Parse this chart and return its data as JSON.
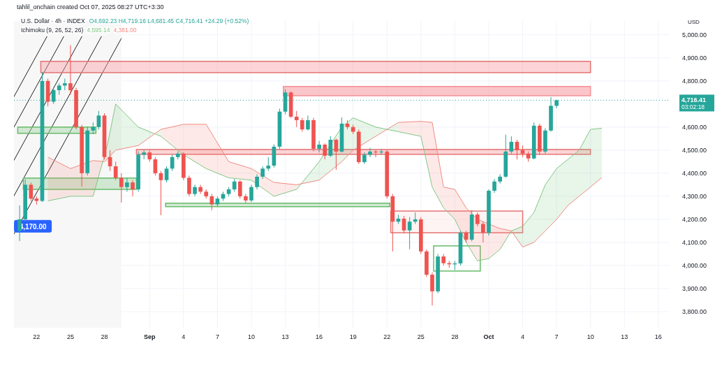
{
  "chart_data": {
    "type": "candlestick",
    "title": "U.S. Dollar · 4h · INDEX",
    "ylabel": "USD",
    "x": [
      "2025-08-20T12:00",
      "2025-08-21T00:00",
      "2025-08-21T12:00",
      "2025-08-22T00:00",
      "2025-08-22T12:00",
      "2025-08-23T00:00",
      "2025-08-23T12:00",
      "2025-08-24T00:00",
      "2025-08-24T12:00",
      "2025-08-25T00:00",
      "2025-08-25T12:00",
      "2025-08-26T00:00",
      "2025-08-26T12:00",
      "2025-08-27T00:00",
      "2025-08-27T12:00",
      "2025-08-28T00:00",
      "2025-08-28T12:00",
      "2025-08-29T00:00",
      "2025-08-29T12:00",
      "2025-08-30T00:00",
      "2025-08-30T12:00",
      "2025-08-31T00:00",
      "2025-08-31T12:00",
      "2025-09-01T00:00",
      "2025-09-01T12:00",
      "2025-09-02T00:00",
      "2025-09-02T12:00",
      "2025-09-03T00:00",
      "2025-09-03T12:00",
      "2025-09-04T00:00",
      "2025-09-04T12:00",
      "2025-09-05T00:00",
      "2025-09-05T12:00",
      "2025-09-06T00:00",
      "2025-09-06T12:00",
      "2025-09-07T00:00",
      "2025-09-07T12:00",
      "2025-09-08T00:00",
      "2025-09-08T12:00",
      "2025-09-09T00:00",
      "2025-09-09T12:00",
      "2025-09-10T00:00",
      "2025-09-10T12:00",
      "2025-09-11T00:00",
      "2025-09-11T12:00",
      "2025-09-12T00:00",
      "2025-09-12T12:00",
      "2025-09-13T00:00",
      "2025-09-13T12:00",
      "2025-09-14T00:00",
      "2025-09-14T12:00",
      "2025-09-15T00:00",
      "2025-09-15T12:00",
      "2025-09-16T00:00",
      "2025-09-16T12:00",
      "2025-09-17T00:00",
      "2025-09-17T12:00",
      "2025-09-18T00:00",
      "2025-09-18T12:00",
      "2025-09-19T00:00",
      "2025-09-19T12:00",
      "2025-09-20T00:00",
      "2025-09-20T12:00",
      "2025-09-21T00:00",
      "2025-09-21T12:00",
      "2025-09-22T00:00",
      "2025-09-22T12:00",
      "2025-09-23T00:00",
      "2025-09-23T12:00",
      "2025-09-24T00:00",
      "2025-09-24T12:00",
      "2025-09-25T00:00",
      "2025-09-25T12:00",
      "2025-09-26T00:00",
      "2025-09-26T12:00",
      "2025-09-27T00:00",
      "2025-09-27T12:00",
      "2025-09-28T00:00",
      "2025-09-28T12:00",
      "2025-09-29T00:00",
      "2025-09-29T12:00",
      "2025-09-30T00:00",
      "2025-09-30T12:00",
      "2025-10-01T00:00",
      "2025-10-01T12:00",
      "2025-10-02T00:00",
      "2025-10-02T12:00",
      "2025-10-03T00:00",
      "2025-10-03T12:00",
      "2025-10-04T00:00",
      "2025-10-04T12:00",
      "2025-10-05T00:00",
      "2025-10-05T12:00",
      "2025-10-06T00:00",
      "2025-10-06T12:00",
      "2025-10-07T00:00"
    ],
    "ohlc": [
      [
        4150,
        4260,
        4106,
        4200
      ],
      [
        4200,
        4373,
        4190,
        4350
      ],
      [
        4350,
        4360,
        4280,
        4290
      ],
      [
        4290,
        4300,
        4264,
        4280
      ],
      [
        4280,
        4839,
        4275,
        4800
      ],
      [
        4800,
        4810,
        4690,
        4710
      ],
      [
        4710,
        4770,
        4700,
        4760
      ],
      [
        4760,
        4790,
        4740,
        4780
      ],
      [
        4780,
        4810,
        4760,
        4790
      ],
      [
        4790,
        4955,
        4740,
        4760
      ],
      [
        4760,
        4770,
        4590,
        4600
      ],
      [
        4600,
        4610,
        4342,
        4400
      ],
      [
        4400,
        4600,
        4390,
        4585
      ],
      [
        4585,
        4620,
        4570,
        4600
      ],
      [
        4600,
        4670,
        4590,
        4650
      ],
      [
        4650,
        4660,
        4460,
        4470
      ],
      [
        4470,
        4500,
        4410,
        4430
      ],
      [
        4430,
        4450,
        4370,
        4380
      ],
      [
        4380,
        4400,
        4273,
        4340
      ],
      [
        4340,
        4380,
        4320,
        4360
      ],
      [
        4360,
        4370,
        4300,
        4330
      ],
      [
        4330,
        4495,
        4320,
        4480
      ],
      [
        4480,
        4500,
        4460,
        4490
      ],
      [
        4490,
        4500,
        4450,
        4460
      ],
      [
        4460,
        4470,
        4390,
        4400
      ],
      [
        4400,
        4410,
        4218,
        4370
      ],
      [
        4370,
        4430,
        4360,
        4420
      ],
      [
        4420,
        4480,
        4410,
        4470
      ],
      [
        4470,
        4495,
        4460,
        4485
      ],
      [
        4485,
        4490,
        4370,
        4380
      ],
      [
        4380,
        4390,
        4300,
        4310
      ],
      [
        4310,
        4350,
        4300,
        4340
      ],
      [
        4340,
        4350,
        4310,
        4320
      ],
      [
        4320,
        4330,
        4290,
        4300
      ],
      [
        4300,
        4310,
        4240,
        4265
      ],
      [
        4265,
        4300,
        4255,
        4290
      ],
      [
        4290,
        4320,
        4280,
        4310
      ],
      [
        4310,
        4340,
        4300,
        4330
      ],
      [
        4330,
        4375,
        4320,
        4364
      ],
      [
        4364,
        4370,
        4290,
        4300
      ],
      [
        4300,
        4310,
        4270,
        4282
      ],
      [
        4282,
        4350,
        4275,
        4340
      ],
      [
        4340,
        4395,
        4330,
        4385
      ],
      [
        4385,
        4430,
        4375,
        4420
      ],
      [
        4420,
        4470,
        4410,
        4433
      ],
      [
        4433,
        4525,
        4425,
        4515
      ],
      [
        4515,
        4680,
        4505,
        4667
      ],
      [
        4667,
        4764,
        4655,
        4750
      ],
      [
        4750,
        4755,
        4640,
        4645
      ],
      [
        4645,
        4670,
        4600,
        4630
      ],
      [
        4630,
        4640,
        4580,
        4590
      ],
      [
        4590,
        4650,
        4585,
        4630
      ],
      [
        4630,
        4640,
        4495,
        4506
      ],
      [
        4506,
        4540,
        4490,
        4524
      ],
      [
        4524,
        4530,
        4460,
        4476
      ],
      [
        4476,
        4560,
        4470,
        4545
      ],
      [
        4545,
        4550,
        4415,
        4494
      ],
      [
        4494,
        4642,
        4490,
        4615
      ],
      [
        4615,
        4630,
        4590,
        4600
      ],
      [
        4600,
        4610,
        4570,
        4580
      ],
      [
        4580,
        4590,
        4440,
        4448
      ],
      [
        4448,
        4490,
        4440,
        4480
      ],
      [
        4480,
        4510,
        4470,
        4494
      ],
      [
        4494,
        4500,
        4470,
        4490
      ],
      [
        4490,
        4505,
        4480,
        4494
      ],
      [
        4494,
        4500,
        4290,
        4300
      ],
      [
        4300,
        4310,
        4061,
        4190
      ],
      [
        4190,
        4220,
        4180,
        4203
      ],
      [
        4203,
        4215,
        4140,
        4152
      ],
      [
        4152,
        4210,
        4070,
        4190
      ],
      [
        4190,
        4230,
        4180,
        4200
      ],
      [
        4200,
        4210,
        4050,
        4061
      ],
      [
        4061,
        4070,
        3950,
        3960
      ],
      [
        3960,
        3970,
        3827,
        3888
      ],
      [
        3888,
        4050,
        3880,
        4039
      ],
      [
        4039,
        4050,
        4000,
        4010
      ],
      [
        4010,
        4020,
        3990,
        4005
      ],
      [
        4005,
        4020,
        3980,
        4009
      ],
      [
        4009,
        4150,
        4000,
        4142
      ],
      [
        4142,
        4150,
        4100,
        4112
      ],
      [
        4112,
        4240,
        4105,
        4221
      ],
      [
        4221,
        4230,
        4170,
        4180
      ],
      [
        4180,
        4190,
        4100,
        4142
      ],
      [
        4142,
        4330,
        4130,
        4324
      ],
      [
        4324,
        4375,
        4315,
        4364
      ],
      [
        4364,
        4395,
        4355,
        4385
      ],
      [
        4385,
        4567,
        4380,
        4494
      ],
      [
        4494,
        4560,
        4485,
        4536
      ],
      [
        4536,
        4545,
        4460,
        4500
      ],
      [
        4500,
        4520,
        4470,
        4485
      ],
      [
        4485,
        4495,
        4450,
        4464
      ],
      [
        4464,
        4620,
        4460,
        4606
      ],
      [
        4606,
        4615,
        4480,
        4494
      ],
      [
        4494,
        4595,
        4485,
        4585
      ],
      [
        4585,
        4730,
        4580,
        4692.23
      ],
      [
        4692.23,
        4719.16,
        4681.45,
        4716.41
      ]
    ],
    "series": [
      {
        "type": "line",
        "color": "#81c784",
        "x": [
          "2025-08-23",
          "2025-08-25",
          "2025-08-27",
          "2025-08-28T06:00",
          "2025-08-29",
          "2025-08-31",
          "2025-09-02",
          "2025-09-04",
          "2025-09-06",
          "2025-09-08",
          "2025-09-10",
          "2025-09-12",
          "2025-09-14",
          "2025-09-16",
          "2025-09-18",
          "2025-09-19",
          "2025-09-21",
          "2025-09-23",
          "2025-09-25",
          "2025-09-26",
          "2025-09-27",
          "2025-09-28",
          "2025-09-29",
          "2025-09-30",
          "2025-10-01",
          "2025-10-02",
          "2025-10-03",
          "2025-10-04",
          "2025-10-05",
          "2025-10-06",
          "2025-10-07",
          "2025-10-08",
          "2025-10-09",
          "2025-10-10",
          "2025-10-11"
        ],
        "values": [
          4280,
          4300,
          4300,
          4520,
          4700,
          4600,
          4560,
          4480,
          4420,
          4380,
          4370,
          4300,
          4330,
          4450,
          4600,
          4640,
          4600,
          4580,
          4560,
          4340,
          4250,
          4200,
          4100,
          4020,
          4030,
          4070,
          4150,
          4170,
          4230,
          4350,
          4420,
          4460,
          4500,
          4590,
          4595
        ]
      },
      {
        "type": "line",
        "color": "#f28b82",
        "x": [
          "2025-08-23",
          "2025-08-25",
          "2025-08-27",
          "2025-08-28",
          "2025-08-29",
          "2025-08-31",
          "2025-09-02",
          "2025-09-04",
          "2025-09-06",
          "2025-09-08",
          "2025-09-10",
          "2025-09-12",
          "2025-09-14",
          "2025-09-16",
          "2025-09-18",
          "2025-09-19",
          "2025-09-21",
          "2025-09-23",
          "2025-09-25",
          "2025-09-26",
          "2025-09-27",
          "2025-09-28",
          "2025-09-29",
          "2025-09-30",
          "2025-10-01",
          "2025-10-02",
          "2025-10-03",
          "2025-10-04",
          "2025-10-05",
          "2025-10-06",
          "2025-10-07",
          "2025-10-08",
          "2025-10-09",
          "2025-10-10",
          "2025-10-11"
        ],
        "values": [
          4470,
          4420,
          4455,
          4450,
          4500,
          4520,
          4590,
          4612,
          4612,
          4450,
          4420,
          4360,
          4350,
          4370,
          4450,
          4500,
          4560,
          4620,
          4625,
          4620,
          4340,
          4330,
          4250,
          4200,
          4180,
          4160,
          4150,
          4080,
          4100,
          4150,
          4200,
          4260,
          4300,
          4340,
          4381
        ]
      }
    ],
    "xlim": [
      "2025-08-20",
      "2025-10-17"
    ],
    "xticks": [
      {
        "value": "2025-08-22",
        "label": "22"
      },
      {
        "value": "2025-08-25",
        "label": "25"
      },
      {
        "value": "2025-08-28",
        "label": "28"
      },
      {
        "value": "2025-09-01",
        "label": "Sep"
      },
      {
        "value": "2025-09-04",
        "label": "4"
      },
      {
        "value": "2025-09-07",
        "label": "7"
      },
      {
        "value": "2025-09-10",
        "label": "10"
      },
      {
        "value": "2025-09-13",
        "label": "13"
      },
      {
        "value": "2025-09-16",
        "label": "16"
      },
      {
        "value": "2025-09-19",
        "label": "19"
      },
      {
        "value": "2025-09-22",
        "label": "22"
      },
      {
        "value": "2025-09-25",
        "label": "25"
      },
      {
        "value": "2025-09-28",
        "label": "28"
      },
      {
        "value": "2025-10-01",
        "label": "Oct"
      },
      {
        "value": "2025-10-04",
        "label": "4"
      },
      {
        "value": "2025-10-07",
        "label": "7"
      },
      {
        "value": "2025-10-10",
        "label": "10"
      },
      {
        "value": "2025-10-13",
        "label": "13"
      },
      {
        "value": "2025-10-16",
        "label": "16"
      }
    ],
    "ylim": [
      3730,
      5060
    ],
    "yticks": [
      {
        "value": 3800,
        "label": "3,800.00"
      },
      {
        "value": 3900,
        "label": "3,900.00"
      },
      {
        "value": 4000,
        "label": "4,000.00"
      },
      {
        "value": 4100,
        "label": "4,100.00"
      },
      {
        "value": 4200,
        "label": "4,200.00"
      },
      {
        "value": 4300,
        "label": "4,300.00"
      },
      {
        "value": 4400,
        "label": "4,400.00"
      },
      {
        "value": 4500,
        "label": "4,500.00"
      },
      {
        "value": 4600,
        "label": "4,600.00"
      },
      {
        "value": 4800,
        "label": "4,800.00"
      },
      {
        "value": 4900,
        "label": "4,900.00"
      },
      {
        "value": 5000,
        "label": "5,000.00"
      }
    ],
    "grid": true,
    "marker": "none",
    "bands": [
      {
        "axis": "x",
        "from": "2025-08-20",
        "to": "2025-08-29T12:00",
        "color": "#f7f7f7"
      }
    ],
    "ref_lines": [
      {
        "axis": "y",
        "value": 4716.41,
        "label": "4,716.41",
        "color": "#26a69a",
        "line_style": "dotted"
      }
    ],
    "annotations": [
      "tahlil_onchain created Oct 07, 2025 08:27 UTC+3:30",
      "O4,692.23 H4,719.16 L4,681.45 C4,716.41 +24.29 (+0.52%)",
      "Ichimoku (9, 26, 52, 26)",
      "4,595.14",
      "4,381.00",
      "03:02:18",
      {
        "text": "4,170.00",
        "x": "2025-08-20T12:00",
        "y": 4170
      }
    ]
  }
}
